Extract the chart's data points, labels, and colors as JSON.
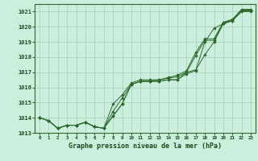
{
  "xlabel": "Graphe pression niveau de la mer (hPa)",
  "bg_color": "#cceedd",
  "grid_color": "#aaccbb",
  "line_color": "#2d6a2d",
  "marker_color": "#2d6a2d",
  "ylim": [
    1013.0,
    1021.5
  ],
  "xlim": [
    -0.5,
    23.5
  ],
  "yticks": [
    1013,
    1014,
    1015,
    1016,
    1017,
    1018,
    1019,
    1020,
    1021
  ],
  "xticks": [
    0,
    1,
    2,
    3,
    4,
    5,
    6,
    7,
    8,
    9,
    10,
    11,
    12,
    13,
    14,
    15,
    16,
    17,
    18,
    19,
    20,
    21,
    22,
    23
  ],
  "x_hours": [
    0,
    1,
    2,
    3,
    4,
    5,
    6,
    7,
    8,
    9,
    10,
    11,
    12,
    13,
    14,
    15,
    16,
    17,
    18,
    19,
    20,
    21,
    22,
    23
  ],
  "series": [
    [
      1014.0,
      1013.8,
      1013.3,
      1013.5,
      1013.5,
      1013.7,
      1013.4,
      1013.3,
      1014.1,
      1014.9,
      1016.2,
      1016.4,
      1016.4,
      1016.4,
      1016.5,
      1016.5,
      1016.9,
      1017.1,
      1019.0,
      1019.9,
      1020.2,
      1020.4,
      1021.0,
      1021.0
    ],
    [
      1014.0,
      1013.8,
      1013.3,
      1013.5,
      1013.5,
      1013.7,
      1013.4,
      1013.3,
      1014.1,
      1014.9,
      1016.2,
      1016.4,
      1016.4,
      1016.4,
      1016.5,
      1016.5,
      1017.0,
      1017.15,
      1018.15,
      1019.0,
      1020.2,
      1020.4,
      1021.05,
      1021.05
    ],
    [
      1014.0,
      1013.8,
      1013.3,
      1013.5,
      1013.5,
      1013.7,
      1013.4,
      1013.3,
      1014.4,
      1015.3,
      1016.2,
      1016.4,
      1016.4,
      1016.5,
      1016.6,
      1016.7,
      1017.0,
      1018.1,
      1019.1,
      1019.1,
      1020.25,
      1020.45,
      1021.1,
      1021.1
    ],
    [
      1014.0,
      1013.8,
      1013.3,
      1013.5,
      1013.5,
      1013.7,
      1013.4,
      1013.3,
      1014.9,
      1015.5,
      1016.3,
      1016.5,
      1016.5,
      1016.5,
      1016.65,
      1016.8,
      1017.1,
      1018.3,
      1019.2,
      1019.2,
      1020.3,
      1020.5,
      1021.15,
      1021.15
    ]
  ]
}
